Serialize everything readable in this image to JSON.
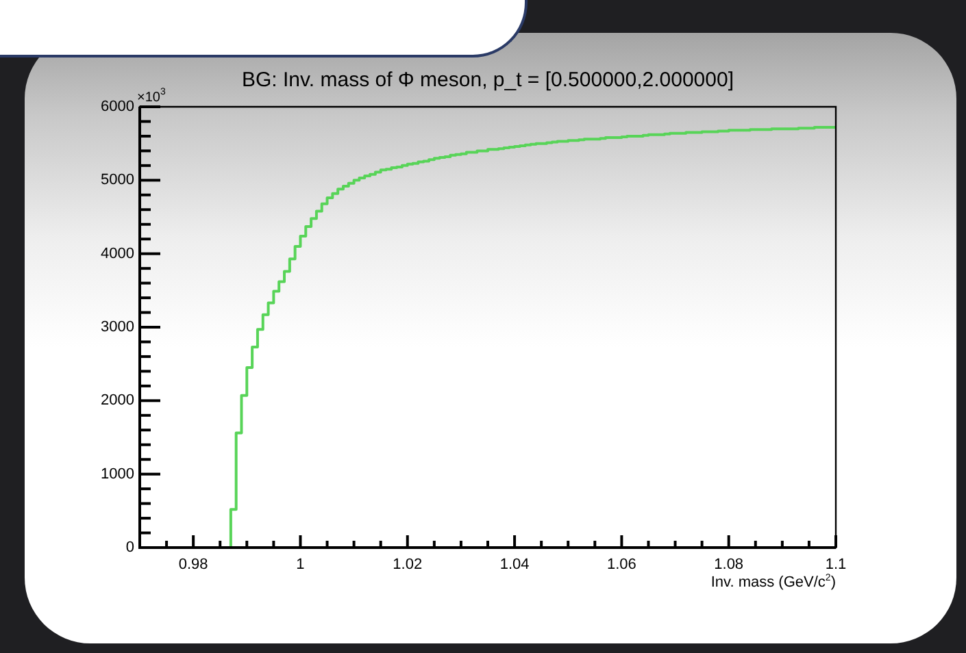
{
  "chart_data": {
    "type": "histogram",
    "title": "BG: Inv. mass of Φ meson, p_t = [0.500000,2.000000]",
    "xlabel": "Inv. mass (GeV/c$^{2}$)",
    "annotations": [
      "×10$^{3}$"
    ],
    "color": "#58d458",
    "bins": [
      0.97,
      0.971,
      0.972,
      0.973,
      0.974,
      0.975,
      0.976,
      0.977,
      0.978,
      0.979,
      0.98,
      0.981,
      0.982,
      0.983,
      0.984,
      0.985,
      0.986,
      0.987,
      0.988,
      0.989,
      0.99,
      0.991,
      0.992,
      0.993,
      0.994,
      0.995,
      0.996,
      0.997,
      0.998,
      0.999,
      1.0,
      1.001,
      1.002,
      1.003,
      1.004,
      1.005,
      1.006,
      1.007,
      1.008,
      1.009,
      1.01,
      1.011,
      1.012,
      1.013,
      1.014,
      1.015,
      1.016,
      1.017,
      1.018,
      1.019,
      1.02,
      1.021,
      1.022,
      1.023,
      1.024,
      1.025,
      1.026,
      1.027,
      1.028,
      1.029,
      1.03,
      1.031,
      1.032,
      1.033,
      1.034,
      1.035,
      1.036,
      1.037,
      1.038,
      1.039,
      1.04,
      1.041,
      1.042,
      1.043,
      1.044,
      1.045,
      1.046,
      1.047,
      1.048,
      1.049,
      1.05,
      1.051,
      1.052,
      1.053,
      1.054,
      1.055,
      1.056,
      1.057,
      1.058,
      1.059,
      1.06,
      1.061,
      1.062,
      1.063,
      1.064,
      1.065,
      1.066,
      1.067,
      1.068,
      1.069,
      1.07,
      1.071,
      1.072,
      1.073,
      1.074,
      1.075,
      1.076,
      1.077,
      1.078,
      1.079,
      1.08,
      1.081,
      1.082,
      1.083,
      1.084,
      1.085,
      1.086,
      1.087,
      1.088,
      1.089,
      1.09,
      1.091,
      1.092,
      1.093,
      1.094,
      1.095,
      1.096,
      1.097,
      1.098,
      1.099,
      1.1
    ],
    "values": [
      0,
      0,
      0,
      0,
      0,
      0,
      0,
      0,
      0,
      0,
      0,
      0,
      0,
      0,
      0,
      0,
      0,
      520,
      1560,
      2070,
      2450,
      2730,
      2970,
      3170,
      3330,
      3490,
      3620,
      3760,
      3930,
      4100,
      4240,
      4370,
      4480,
      4580,
      4680,
      4760,
      4820,
      4880,
      4920,
      4960,
      5000,
      5030,
      5060,
      5080,
      5110,
      5140,
      5150,
      5170,
      5180,
      5200,
      5220,
      5230,
      5250,
      5260,
      5280,
      5300,
      5310,
      5320,
      5340,
      5350,
      5360,
      5380,
      5380,
      5400,
      5400,
      5420,
      5420,
      5430,
      5440,
      5450,
      5460,
      5470,
      5480,
      5490,
      5500,
      5500,
      5510,
      5520,
      5530,
      5530,
      5540,
      5540,
      5550,
      5560,
      5560,
      5560,
      5570,
      5580,
      5580,
      5580,
      5590,
      5600,
      5600,
      5600,
      5610,
      5620,
      5620,
      5620,
      5630,
      5640,
      5640,
      5640,
      5650,
      5650,
      5650,
      5660,
      5660,
      5660,
      5670,
      5670,
      5680,
      5680,
      5680,
      5680,
      5690,
      5690,
      5690,
      5690,
      5700,
      5700,
      5700,
      5700,
      5700,
      5710,
      5710,
      5710,
      5720,
      5720,
      5720,
      5720
    ],
    "xlim": [
      0.97,
      1.1
    ],
    "xticks": [
      {
        "value": 0.975,
        "label": null
      },
      0.98,
      {
        "value": 0.985,
        "label": null
      },
      {
        "value": 0.99,
        "label": null
      },
      {
        "value": 0.995,
        "label": null
      },
      1,
      {
        "value": 1.005,
        "label": null
      },
      {
        "value": 1.01,
        "label": null
      },
      {
        "value": 1.015,
        "label": null
      },
      1.02,
      {
        "value": 1.025,
        "label": null
      },
      {
        "value": 1.03,
        "label": null
      },
      {
        "value": 1.035,
        "label": null
      },
      1.04,
      {
        "value": 1.045,
        "label": null
      },
      {
        "value": 1.05,
        "label": null
      },
      {
        "value": 1.055,
        "label": null
      },
      1.06,
      {
        "value": 1.065,
        "label": null
      },
      {
        "value": 1.07,
        "label": null
      },
      {
        "value": 1.075,
        "label": null
      },
      1.08,
      {
        "value": 1.085,
        "label": null
      },
      {
        "value": 1.09,
        "label": null
      },
      {
        "value": 1.095,
        "label": null
      },
      1.1
    ],
    "ylim": [
      0,
      6000
    ],
    "yticks": [
      0,
      {
        "value": 200,
        "label": null
      },
      {
        "value": 400,
        "label": null
      },
      {
        "value": 600,
        "label": null
      },
      {
        "value": 800,
        "label": null
      },
      1000,
      {
        "value": 1200,
        "label": null
      },
      {
        "value": 1400,
        "label": null
      },
      {
        "value": 1600,
        "label": null
      },
      {
        "value": 1800,
        "label": null
      },
      2000,
      {
        "value": 2200,
        "label": null
      },
      {
        "value": 2400,
        "label": null
      },
      {
        "value": 2600,
        "label": null
      },
      {
        "value": 2800,
        "label": null
      },
      3000,
      {
        "value": 3200,
        "label": null
      },
      {
        "value": 3400,
        "label": null
      },
      {
        "value": 3600,
        "label": null
      },
      {
        "value": 3800,
        "label": null
      },
      4000,
      {
        "value": 4200,
        "label": null
      },
      {
        "value": 4400,
        "label": null
      },
      {
        "value": 4600,
        "label": null
      },
      {
        "value": 4800,
        "label": null
      },
      5000,
      {
        "value": 5200,
        "label": null
      },
      {
        "value": 5400,
        "label": null
      },
      {
        "value": 5600,
        "label": null
      },
      {
        "value": 5800,
        "label": null
      },
      6000
    ],
    "grid": false,
    "legend": false
  }
}
